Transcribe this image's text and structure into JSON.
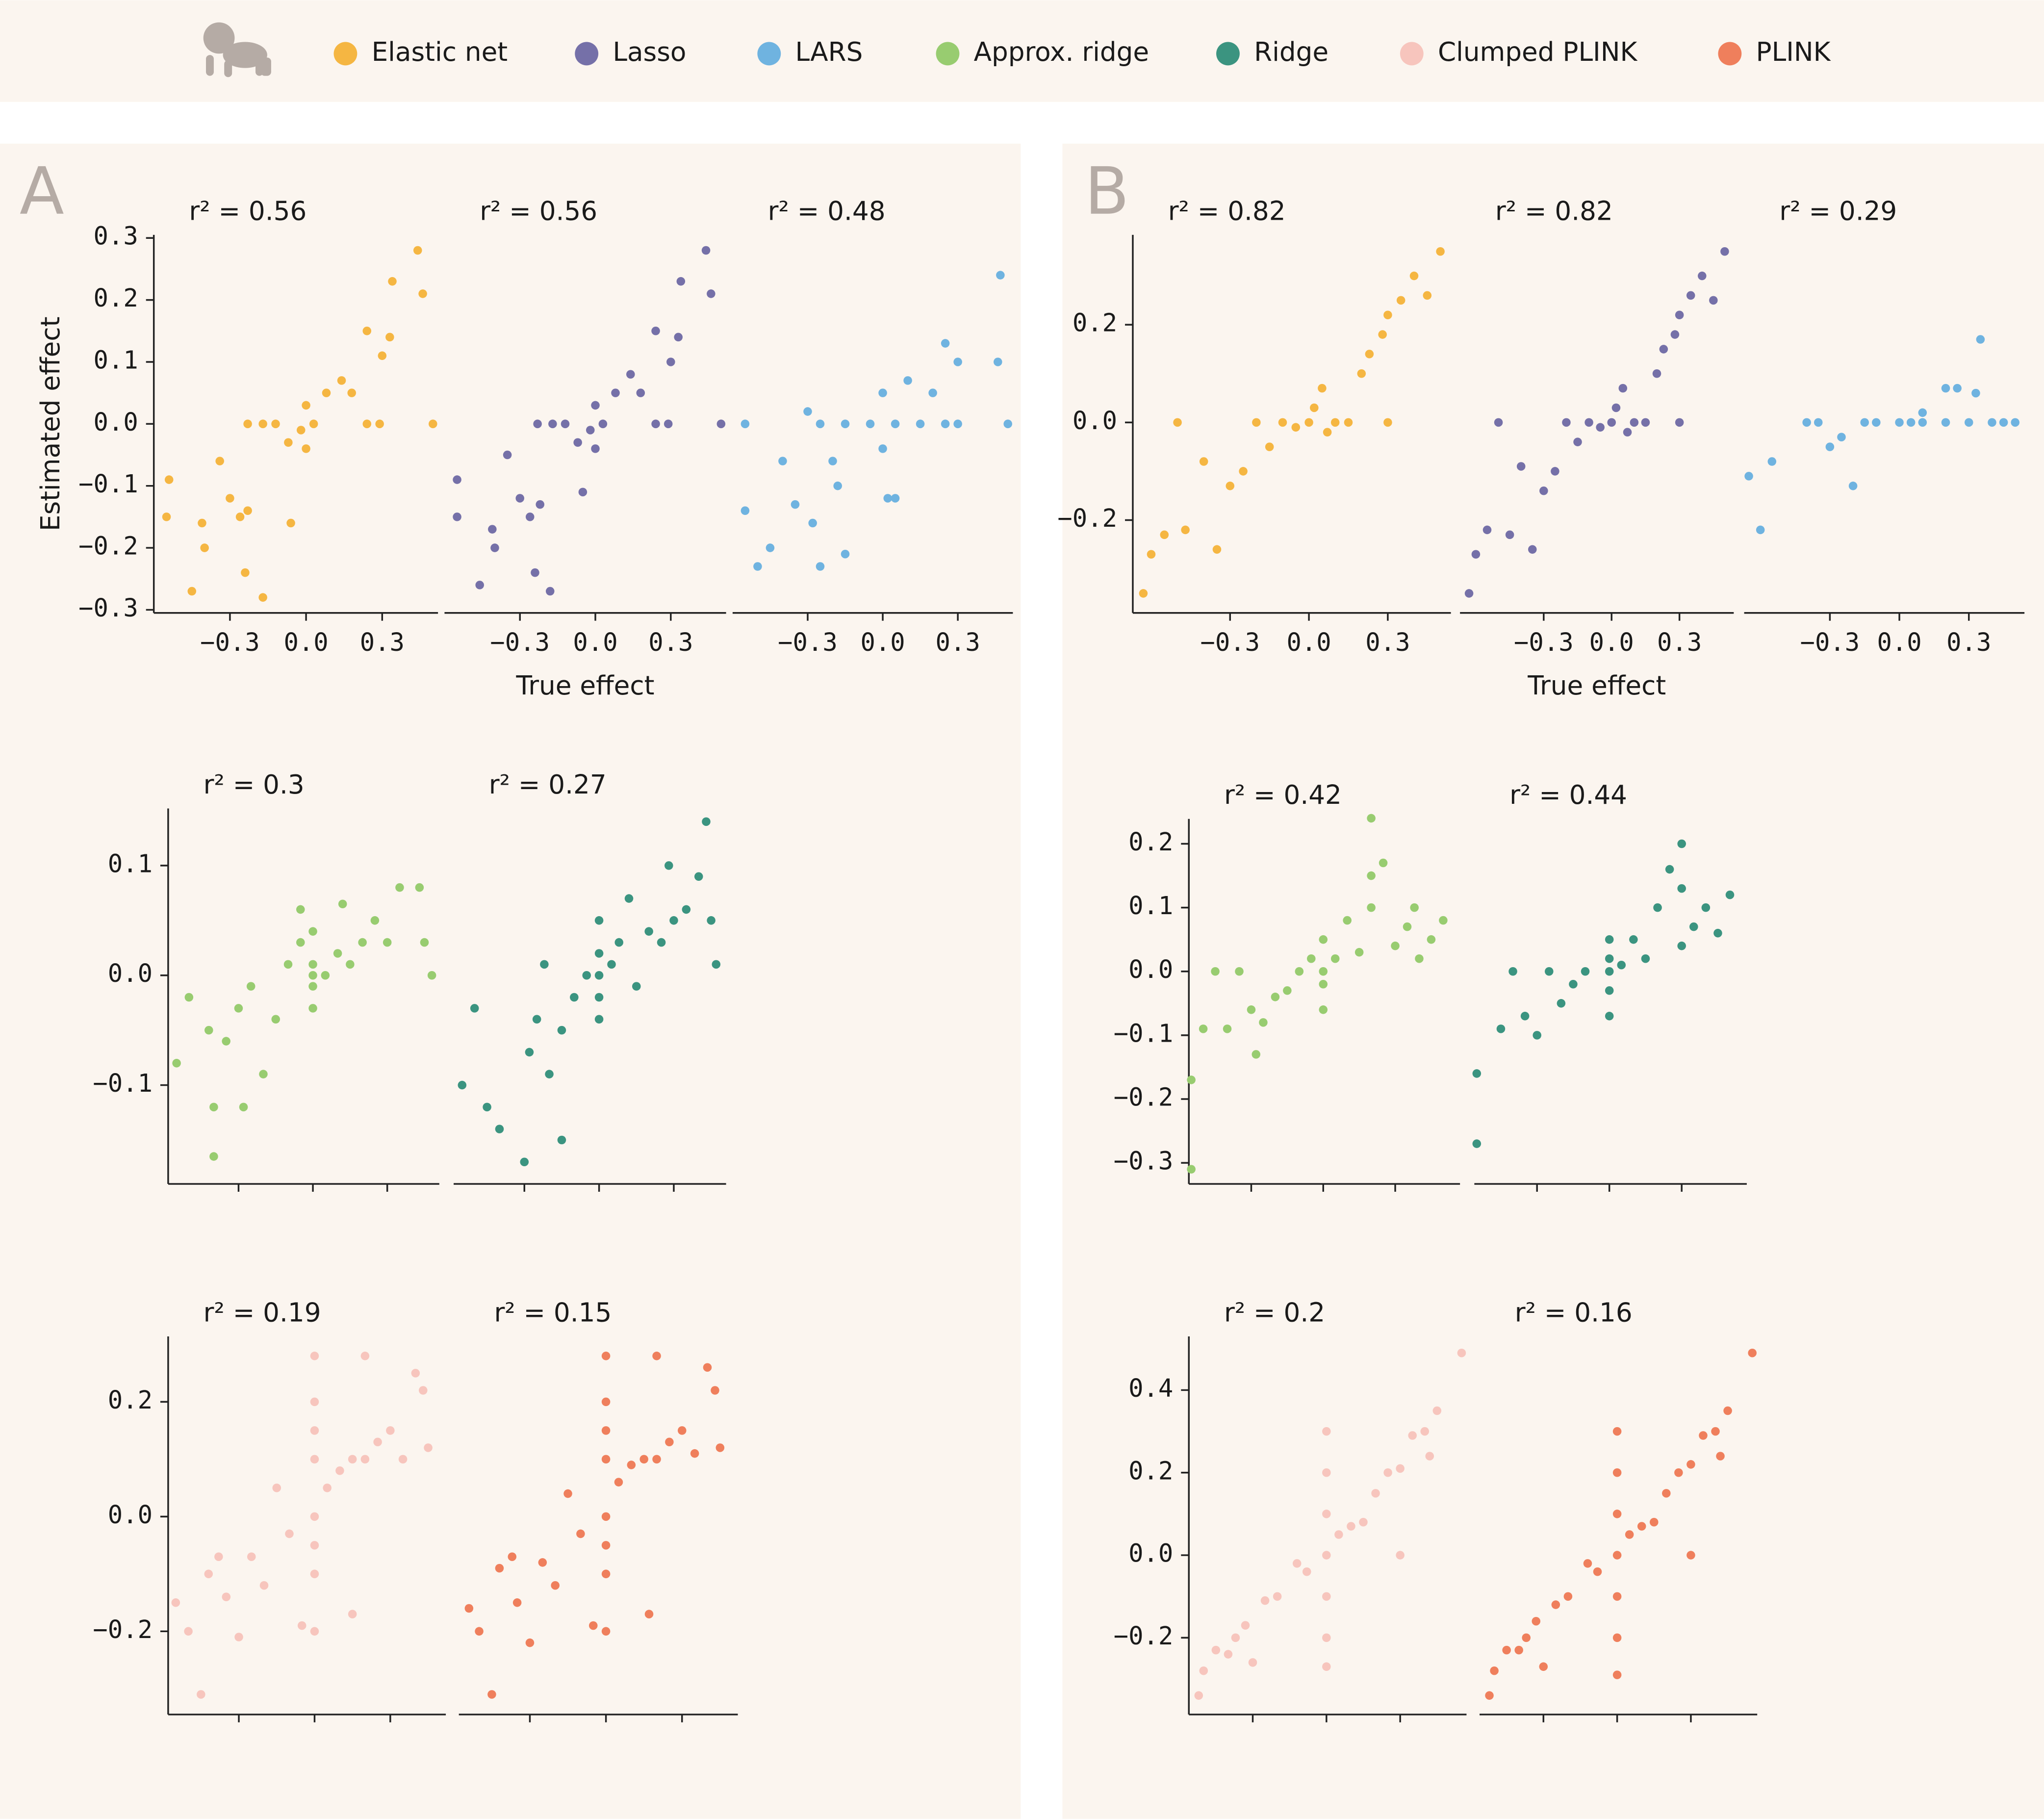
{
  "legend": [
    {
      "name": "Elastic net",
      "color": "#f5b642"
    },
    {
      "name": "Lasso",
      "color": "#7570a8"
    },
    {
      "name": "LARS",
      "color": "#6fb3e0"
    },
    {
      "name": "Approx. ridge",
      "color": "#98cc70"
    },
    {
      "name": "Ridge",
      "color": "#3b9480"
    },
    {
      "name": "Clumped PLINK",
      "color": "#f7c5bd"
    },
    {
      "name": "PLINK",
      "color": "#ef7f5c"
    }
  ],
  "panels": [
    "A",
    "B"
  ],
  "chart_data": [
    {
      "type": "scatter",
      "title": "r² = 0.56",
      "y_label": "Estimated effect",
      "color": "#f5b642",
      "x": [
        -0.54,
        -0.55,
        -0.45,
        -0.41,
        -0.4,
        -0.34,
        -0.3,
        -0.26,
        -0.24,
        -0.17,
        -0.23,
        -0.17,
        -0.12,
        -0.07,
        -0.06,
        -0.02,
        0,
        0,
        0.03,
        0.08,
        0.14,
        0.18,
        0.24,
        0.29,
        0.24,
        0.33,
        0.3,
        0.34,
        0.44,
        0.46,
        0.5,
        -0.23
      ],
      "values": [
        -0.09,
        -0.15,
        -0.27,
        -0.16,
        -0.2,
        -0.06,
        -0.12,
        -0.15,
        -0.24,
        -0.28,
        0,
        0,
        0,
        -0.03,
        -0.16,
        -0.01,
        0.03,
        -0.04,
        0,
        0.05,
        0.07,
        0.05,
        0,
        0,
        0.15,
        0.14,
        0.11,
        0.23,
        0.28,
        0.21,
        0,
        -0.14
      ],
      "xlim": [
        -0.6,
        0.52
      ],
      "ylim": [
        -0.305,
        0.305
      ],
      "xticks": [
        {
          "value": -0.3,
          "label": "−0.3"
        },
        {
          "value": 0,
          "label": "0.0"
        },
        0.3
      ],
      "yticks": [
        {
          "value": -0.3,
          "label": "−0.3"
        },
        {
          "value": -0.2,
          "label": "−0.2"
        },
        {
          "value": -0.1,
          "label": "−0.1"
        },
        {
          "value": 0,
          "label": "0.0"
        },
        0.1,
        0.2,
        0.3
      ]
    },
    {
      "type": "scatter",
      "title": "r² = 0.56",
      "x_label": "True effect",
      "color": "#7570a8",
      "x": [
        -0.55,
        -0.55,
        -0.46,
        -0.41,
        -0.4,
        -0.35,
        -0.3,
        -0.26,
        -0.24,
        -0.18,
        -0.23,
        -0.17,
        -0.12,
        -0.07,
        -0.05,
        -0.02,
        0,
        0,
        0.03,
        0.08,
        0.14,
        0.18,
        0.24,
        0.29,
        0.24,
        0.33,
        0.3,
        0.34,
        0.44,
        0.46,
        0.5,
        -0.22
      ],
      "values": [
        -0.09,
        -0.15,
        -0.26,
        -0.17,
        -0.2,
        -0.05,
        -0.12,
        -0.15,
        -0.24,
        -0.27,
        0,
        0,
        0,
        -0.03,
        -0.11,
        -0.01,
        0.03,
        -0.04,
        0,
        0.05,
        0.08,
        0.05,
        0,
        0,
        0.15,
        0.14,
        0.1,
        0.23,
        0.28,
        0.21,
        0,
        -0.13
      ],
      "xlim": [
        -0.6,
        0.52
      ],
      "ylim": [
        -0.305,
        0.305
      ],
      "xticks": [
        {
          "value": -0.3,
          "label": "−0.3"
        },
        {
          "value": 0,
          "label": "0.0"
        },
        0.3
      ]
    },
    {
      "type": "scatter",
      "title": "r² = 0.48",
      "color": "#6fb3e0",
      "x": [
        -0.55,
        -0.55,
        -0.5,
        -0.45,
        -0.4,
        -0.35,
        -0.3,
        -0.28,
        -0.25,
        -0.2,
        -0.18,
        -0.15,
        -0.25,
        -0.15,
        -0.05,
        0,
        0,
        0.05,
        0.15,
        0.25,
        0.3,
        0.1,
        0.2,
        0.25,
        0.3,
        0.47,
        0.46,
        0.5,
        0.02,
        0.05
      ],
      "values": [
        0,
        -0.14,
        -0.23,
        -0.2,
        -0.06,
        -0.13,
        0.02,
        -0.16,
        -0.23,
        -0.06,
        -0.1,
        -0.21,
        0,
        0,
        0,
        0.05,
        -0.04,
        0,
        0,
        0,
        0,
        0.07,
        0.05,
        0.13,
        0.1,
        0.24,
        0.1,
        0,
        -0.12,
        -0.12
      ],
      "xlim": [
        -0.6,
        0.52
      ],
      "ylim": [
        -0.305,
        0.305
      ],
      "xticks": [
        {
          "value": -0.3,
          "label": "−0.3"
        },
        {
          "value": 0,
          "label": "0.0"
        },
        0.3
      ]
    },
    {
      "type": "scatter",
      "title": "r² = 0.3",
      "color": "#98cc70",
      "xtick_labels": false,
      "x": [
        -0.55,
        -0.5,
        -0.42,
        -0.4,
        -0.4,
        -0.35,
        -0.3,
        -0.28,
        -0.25,
        -0.2,
        -0.15,
        -0.1,
        -0.05,
        0,
        0,
        0,
        0,
        0,
        0.05,
        0.1,
        0.12,
        0.15,
        0.2,
        0.25,
        0.3,
        0.35,
        0.43,
        0.45,
        0.48,
        -0.05
      ],
      "values": [
        -0.08,
        -0.02,
        -0.05,
        -0.12,
        -0.165,
        -0.06,
        -0.03,
        -0.12,
        -0.01,
        -0.09,
        -0.04,
        0.01,
        0.03,
        0.04,
        -0.03,
        0,
        0.01,
        -0.01,
        0,
        0.02,
        0.065,
        0.01,
        0.03,
        0.05,
        0.03,
        0.08,
        0.08,
        0.03,
        0,
        0.06
      ],
      "xlim": [
        -0.584,
        0.51
      ],
      "ylim": [
        -0.19,
        0.152
      ],
      "xticks": [
        -0.3,
        0,
        0.3
      ],
      "yticks": [
        {
          "value": -0.1,
          "label": "−0.1"
        },
        {
          "value": 0,
          "label": "0.0"
        },
        0.1
      ]
    },
    {
      "type": "scatter",
      "title": "r² = 0.27",
      "color": "#3b9480",
      "xtick_labels": false,
      "x": [
        -0.55,
        -0.5,
        -0.45,
        -0.4,
        -0.3,
        -0.28,
        -0.25,
        -0.2,
        -0.15,
        -0.1,
        -0.05,
        -0.22,
        0,
        0,
        0,
        0,
        0,
        0.05,
        0.08,
        0.12,
        0.15,
        0.2,
        0.25,
        0.28,
        0.3,
        0.35,
        0.4,
        0.43,
        0.45,
        0.47,
        -0.15
      ],
      "values": [
        -0.1,
        -0.03,
        -0.12,
        -0.14,
        -0.17,
        -0.07,
        -0.04,
        -0.09,
        -0.05,
        -0.02,
        0,
        0.01,
        0.05,
        -0.04,
        0,
        0.02,
        -0.02,
        0.01,
        0.03,
        0.07,
        -0.01,
        0.04,
        0.03,
        0.1,
        0.05,
        0.06,
        0.09,
        0.14,
        0.05,
        0.01,
        -0.15
      ],
      "xlim": [
        -0.584,
        0.51
      ],
      "ylim": [
        -0.19,
        0.152
      ],
      "xticks": [
        -0.3,
        0,
        0.3
      ]
    },
    {
      "type": "scatter",
      "title": "r² = 0.19",
      "color": "#f7c5bd",
      "xtick_labels": false,
      "x": [
        -0.55,
        -0.5,
        -0.45,
        -0.42,
        -0.38,
        -0.35,
        -0.3,
        -0.25,
        -0.2,
        -0.15,
        -0.1,
        -0.05,
        0,
        0,
        0,
        0,
        0,
        0,
        0,
        0,
        0.05,
        0.1,
        0.15,
        0.2,
        0.25,
        0.3,
        0.35,
        0.4,
        0.43,
        0.45,
        0.2,
        0.15
      ],
      "values": [
        -0.15,
        -0.2,
        -0.31,
        -0.1,
        -0.07,
        -0.14,
        -0.21,
        -0.07,
        -0.12,
        0.05,
        -0.03,
        -0.19,
        0.28,
        0.2,
        0.1,
        0,
        -0.1,
        -0.2,
        0.15,
        -0.05,
        0.05,
        0.08,
        0.1,
        0.1,
        0.13,
        0.15,
        0.1,
        0.25,
        0.22,
        0.12,
        0.28,
        -0.17
      ],
      "xlim": [
        -0.58,
        0.52
      ],
      "ylim": [
        -0.345,
        0.314
      ],
      "xticks": [
        -0.3,
        0,
        0.3
      ],
      "yticks": [
        {
          "value": -0.2,
          "label": "−0.2"
        },
        {
          "value": 0,
          "label": "0.0"
        },
        0.2
      ]
    },
    {
      "type": "scatter",
      "title": "r² = 0.15",
      "color": "#ef7f5c",
      "xtick_labels": false,
      "x": [
        -0.54,
        -0.5,
        -0.45,
        -0.42,
        -0.37,
        -0.35,
        -0.3,
        -0.25,
        -0.2,
        -0.15,
        -0.1,
        -0.05,
        0,
        0,
        0,
        0,
        0,
        0,
        0,
        0,
        0.05,
        0.1,
        0.15,
        0.2,
        0.25,
        0.3,
        0.35,
        0.4,
        0.43,
        0.45,
        0.2,
        0.17
      ],
      "values": [
        -0.16,
        -0.2,
        -0.31,
        -0.09,
        -0.07,
        -0.15,
        -0.22,
        -0.08,
        -0.12,
        0.04,
        -0.03,
        -0.19,
        0.28,
        0.2,
        0.1,
        0,
        -0.1,
        -0.2,
        0.15,
        -0.05,
        0.06,
        0.09,
        0.1,
        0.1,
        0.13,
        0.15,
        0.11,
        0.26,
        0.22,
        0.12,
        0.28,
        -0.17
      ],
      "xlim": [
        -0.58,
        0.52
      ],
      "ylim": [
        -0.345,
        0.314
      ],
      "xticks": [
        -0.3,
        0,
        0.3
      ]
    },
    {
      "type": "scatter",
      "title": "r² = 0.82",
      "color": "#f5b642",
      "x": [
        -0.63,
        -0.6,
        -0.55,
        -0.5,
        -0.47,
        -0.4,
        -0.35,
        -0.3,
        -0.25,
        -0.2,
        -0.15,
        -0.1,
        -0.05,
        0,
        0.02,
        0.05,
        0.1,
        0.15,
        0.2,
        0.23,
        0.28,
        0.3,
        0.35,
        0.4,
        0.45,
        0.5,
        0.3,
        0.07
      ],
      "values": [
        -0.35,
        -0.27,
        -0.23,
        0,
        -0.22,
        -0.08,
        -0.26,
        -0.13,
        -0.1,
        0,
        -0.05,
        0,
        -0.01,
        0,
        0.03,
        0.07,
        0,
        0,
        0.1,
        0.14,
        0.18,
        0.22,
        0.25,
        0.3,
        0.26,
        0.35,
        0,
        -0.02
      ],
      "xlim": [
        -0.67,
        0.54
      ],
      "ylim": [
        -0.39,
        0.384
      ],
      "xticks": [
        {
          "value": -0.3,
          "label": "−0.3"
        },
        {
          "value": 0,
          "label": "0.0"
        },
        0.3
      ],
      "yticks": [
        {
          "value": -0.2,
          "label": "−0.2"
        },
        {
          "value": 0,
          "label": "0.0"
        },
        0.2
      ]
    },
    {
      "type": "scatter",
      "title": "r² = 0.82",
      "x_label": "True effect",
      "color": "#7570a8",
      "x": [
        -0.63,
        -0.6,
        -0.55,
        -0.5,
        -0.45,
        -0.4,
        -0.35,
        -0.3,
        -0.25,
        -0.2,
        -0.15,
        -0.1,
        -0.05,
        0,
        0.02,
        0.05,
        0.1,
        0.15,
        0.2,
        0.23,
        0.28,
        0.3,
        0.35,
        0.4,
        0.45,
        0.5,
        0.3,
        0.07
      ],
      "values": [
        -0.35,
        -0.27,
        -0.22,
        0,
        -0.23,
        -0.09,
        -0.26,
        -0.14,
        -0.1,
        0,
        -0.04,
        0,
        -0.01,
        0,
        0.03,
        0.07,
        0,
        0,
        0.1,
        0.15,
        0.18,
        0.22,
        0.26,
        0.3,
        0.25,
        0.35,
        0,
        -0.02
      ],
      "xlim": [
        -0.67,
        0.54
      ],
      "ylim": [
        -0.39,
        0.384
      ],
      "xticks": [
        {
          "value": -0.3,
          "label": "−0.3"
        },
        {
          "value": 0,
          "label": "0.0"
        },
        0.3
      ]
    },
    {
      "type": "scatter",
      "title": "r² = 0.29",
      "color": "#6fb3e0",
      "x": [
        -0.65,
        -0.6,
        -0.55,
        -0.4,
        -0.3,
        -0.2,
        -0.25,
        -0.1,
        0,
        0.1,
        0.2,
        0.3,
        0.4,
        0.5,
        0.25,
        0.35,
        0.33,
        0.2,
        0.1,
        -0.35,
        -0.15,
        0.05,
        0.45
      ],
      "values": [
        -0.11,
        -0.22,
        -0.08,
        0,
        -0.05,
        -0.13,
        -0.03,
        0,
        0,
        0,
        0,
        0,
        0,
        0,
        0.07,
        0.17,
        0.06,
        0.07,
        0.02,
        0,
        0,
        0,
        0
      ],
      "xlim": [
        -0.67,
        0.54
      ],
      "ylim": [
        -0.39,
        0.384
      ],
      "xticks": [
        {
          "value": -0.3,
          "label": "−0.3"
        },
        {
          "value": 0,
          "label": "0.0"
        },
        0.3
      ]
    },
    {
      "type": "scatter",
      "title": "r² = 0.42",
      "color": "#98cc70",
      "xtick_labels": false,
      "x": [
        -0.55,
        -0.55,
        -0.5,
        -0.45,
        -0.4,
        -0.35,
        -0.3,
        -0.28,
        -0.25,
        -0.2,
        -0.15,
        -0.1,
        -0.05,
        0,
        0,
        0,
        0,
        0.05,
        0.1,
        0.15,
        0.2,
        0.2,
        0.25,
        0.3,
        0.35,
        0.38,
        0.4,
        0.45,
        0.5,
        0.2
      ],
      "values": [
        -0.31,
        -0.17,
        -0.09,
        0,
        -0.09,
        0,
        -0.06,
        -0.13,
        -0.08,
        -0.04,
        -0.03,
        0,
        0.02,
        0.05,
        -0.06,
        0,
        -0.02,
        0.02,
        0.08,
        0.03,
        0.15,
        0.1,
        0.17,
        0.04,
        0.07,
        0.1,
        0.02,
        0.05,
        0.08,
        0.24
      ],
      "xlim": [
        -0.56,
        0.57
      ],
      "ylim": [
        -0.333,
        0.239
      ],
      "xticks": [
        -0.3,
        0,
        0.3
      ],
      "yticks": [
        {
          "value": -0.3,
          "label": "−0.3"
        },
        {
          "value": -0.2,
          "label": "−0.2"
        },
        {
          "value": -0.1,
          "label": "−0.1"
        },
        {
          "value": 0,
          "label": "0.0"
        },
        0.1,
        0.2
      ]
    },
    {
      "type": "scatter",
      "title": "r² = 0.44",
      "color": "#3b9480",
      "xtick_labels": false,
      "x": [
        -0.55,
        -0.55,
        -0.45,
        -0.4,
        -0.35,
        -0.3,
        -0.25,
        -0.2,
        -0.15,
        -0.1,
        0,
        0,
        0,
        0,
        0,
        0.05,
        0.1,
        0.15,
        0.2,
        0.25,
        0.3,
        0.3,
        0.35,
        0.4,
        0.45,
        0.5,
        0.3
      ],
      "values": [
        -0.27,
        -0.16,
        -0.09,
        0,
        -0.07,
        -0.1,
        0,
        -0.05,
        -0.02,
        0,
        0.05,
        -0.07,
        0,
        0.02,
        -0.03,
        0.01,
        0.05,
        0.02,
        0.1,
        0.16,
        0.13,
        0.04,
        0.07,
        0.1,
        0.06,
        0.12,
        0.2
      ],
      "xlim": [
        -0.56,
        0.57
      ],
      "ylim": [
        -0.333,
        0.239
      ],
      "xticks": [
        -0.3,
        0,
        0.3
      ]
    },
    {
      "type": "scatter",
      "title": "r² = 0.2",
      "color": "#f7c5bd",
      "xtick_labels": false,
      "x": [
        -0.52,
        -0.5,
        -0.45,
        -0.4,
        -0.37,
        -0.33,
        -0.3,
        -0.25,
        -0.2,
        -0.12,
        -0.08,
        0,
        0,
        0,
        0,
        0,
        0,
        0,
        0.05,
        0.1,
        0.15,
        0.2,
        0.25,
        0.3,
        0.35,
        0.4,
        0.45,
        0.42,
        0.55,
        0.3
      ],
      "values": [
        -0.34,
        -0.28,
        -0.23,
        -0.24,
        -0.2,
        -0.17,
        -0.26,
        -0.11,
        -0.1,
        -0.02,
        -0.04,
        0.3,
        0.2,
        0.1,
        0,
        -0.1,
        -0.2,
        -0.27,
        0.05,
        0.07,
        0.08,
        0.15,
        0.2,
        0.21,
        0.29,
        0.3,
        0.35,
        0.24,
        0.49,
        0
      ],
      "xlim": [
        -0.56,
        0.57
      ],
      "ylim": [
        -0.386,
        0.53
      ],
      "xticks": [
        -0.3,
        0,
        0.3
      ],
      "yticks": [
        {
          "value": -0.2,
          "label": "−0.2"
        },
        {
          "value": 0,
          "label": "0.0"
        },
        0.2,
        0.4
      ]
    },
    {
      "type": "scatter",
      "title": "r² = 0.16",
      "color": "#ef7f5c",
      "xtick_labels": false,
      "x": [
        -0.52,
        -0.5,
        -0.45,
        -0.4,
        -0.37,
        -0.33,
        -0.3,
        -0.25,
        -0.2,
        -0.12,
        -0.08,
        0,
        0,
        0,
        0,
        0,
        0,
        0,
        0.05,
        0.1,
        0.15,
        0.2,
        0.25,
        0.3,
        0.35,
        0.4,
        0.45,
        0.42,
        0.55,
        0.3
      ],
      "values": [
        -0.34,
        -0.28,
        -0.23,
        -0.23,
        -0.2,
        -0.16,
        -0.27,
        -0.12,
        -0.1,
        -0.02,
        -0.04,
        0.3,
        0.2,
        0.1,
        0,
        -0.1,
        -0.2,
        -0.29,
        0.05,
        0.07,
        0.08,
        0.15,
        0.2,
        0.22,
        0.29,
        0.3,
        0.35,
        0.24,
        0.49,
        0
      ],
      "xlim": [
        -0.56,
        0.57
      ],
      "ylim": [
        -0.386,
        0.53
      ],
      "xticks": [
        -0.3,
        0,
        0.3
      ]
    }
  ]
}
